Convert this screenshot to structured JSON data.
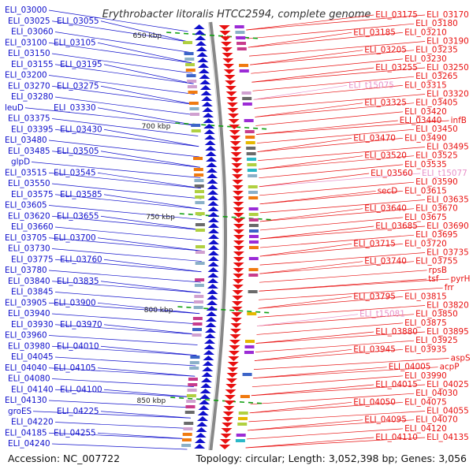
{
  "title": "Erythrobacter litoralis HTCC2594, complete genome",
  "footer": {
    "accession": "Accession: NC_007722",
    "topology": "Topology: circular; Length: 3,052,398 bp; Genes: 3,056"
  },
  "colors": {
    "left_strand": "#1010cc",
    "right_strand": "#e81010",
    "rna": "#e890c8",
    "tick": "#10a010",
    "axis": "#888888"
  },
  "bp_ticks": [
    {
      "label": "650 kbp"
    },
    {
      "label": "700 kbp"
    },
    {
      "label": "750 kbp"
    },
    {
      "label": "800 kbp"
    },
    {
      "label": "850 kbp"
    }
  ],
  "left_genes": [
    "ELI_03000",
    "ELI_03025",
    "ELI_03055",
    "ELI_03060",
    "ELI_03100",
    "ELI_03105",
    "ELI_03150",
    "ELI_03155",
    "ELI_03195",
    "ELI_03200",
    "ELI_03270",
    "ELI_03275",
    "ELI_03280",
    "leuD",
    "ELI_03330",
    "ELI_03375",
    "ELI_03395",
    "ELI_03430",
    "ELI_03480",
    "ELI_03485",
    "ELI_03505",
    "glpD",
    "ELI_03515",
    "ELI_03545",
    "ELI_03550",
    "ELI_03575",
    "ELI_03585",
    "ELI_03605",
    "ELI_03620",
    "ELI_03655",
    "ELI_03660",
    "ELI_03705",
    "ELI_03700",
    "ELI_03730",
    "ELI_03775",
    "ELI_03760",
    "ELI_03780",
    "ELI_03840",
    "ELI_03835",
    "ELI_03845",
    "ELI_03905",
    "ELI_03900",
    "ELI_03940",
    "ELI_03930",
    "ELI_03970",
    "ELI_03960",
    "ELI_03980",
    "ELI_04010",
    "ELI_04045",
    "ELI_04040",
    "ELI_04105",
    "ELI_04080",
    "ELI_04140",
    "ELI_04100",
    "ELI_04130",
    "groES",
    "ELI_04225",
    "ELI_04220",
    "ELI_04185",
    "ELI_04255",
    "ELI_04240"
  ],
  "right_genes": [
    "ELI_03175",
    "ELI_03170",
    "ELI_03180",
    "ELI_03185",
    "ELI_03210",
    "ELI_03190",
    "ELI_03205",
    "ELI_03235",
    "ELI_03230",
    "ELI_03255",
    "ELI_03250",
    "ELI_03265",
    "ELI_t15075",
    "ELI_03315",
    "ELI_03320",
    "ELI_03325",
    "ELI_03405",
    "ELI_03420",
    "ELI_03440",
    "infB",
    "ELI_03450",
    "ELI_03470",
    "ELI_03490",
    "ELI_03495",
    "ELI_03520",
    "ELI_03525",
    "ELI_03535",
    "ELI_03560",
    "ELI_t15077",
    "ELI_03590",
    "secD",
    "ELI_03615",
    "ELI_03635",
    "ELI_03640",
    "ELI_03670",
    "ELI_03675",
    "ELI_03685",
    "ELI_03690",
    "ELI_03695",
    "ELI_03715",
    "ELI_03720",
    "ELI_03735",
    "ELI_03740",
    "ELI_03755",
    "rpsB",
    "tsf",
    "pyrH",
    "frr",
    "ELI_03795",
    "ELI_03815",
    "ELI_03820",
    "ELI_t15081",
    "ELI_03850",
    "ELI_03875",
    "ELI_03880",
    "ELI_03895",
    "ELI_03925",
    "ELI_03945",
    "ELI_03935",
    "aspS",
    "ELI_04005",
    "acpP",
    "ELI_03990",
    "ELI_04015",
    "ELI_04025",
    "ELI_04030",
    "ELI_04050",
    "ELI_04075",
    "ELI_04055",
    "ELI_04095",
    "ELI_04070",
    "ELI_04120",
    "ELI_04110",
    "ELI_04135"
  ],
  "rna_genes": [
    "ELI_t15075",
    "ELI_t15077",
    "ELI_t15081"
  ]
}
